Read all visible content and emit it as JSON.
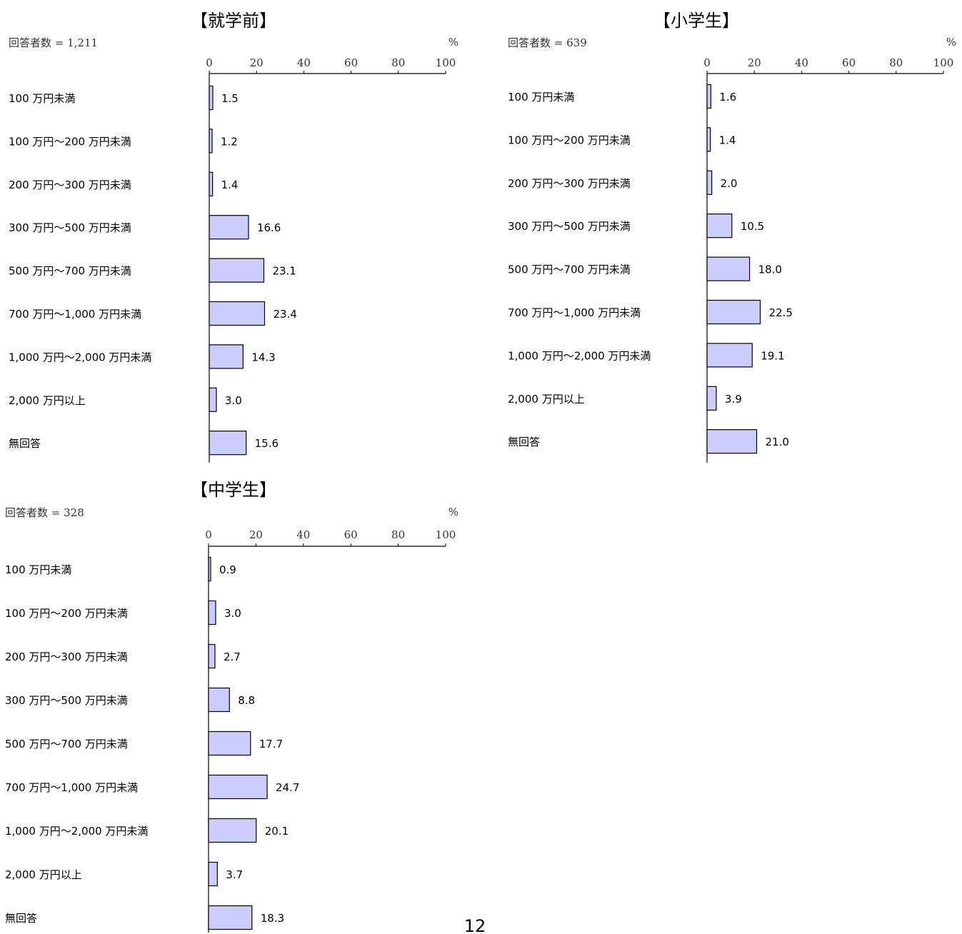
{
  "chart_data": [
    {
      "type": "bar",
      "orientation": "horizontal",
      "title": "【就学前】",
      "respondents": "回答者数 = 1,211",
      "unit": "%",
      "xlim": [
        0,
        100
      ],
      "ticks": [
        "0",
        "20",
        "40",
        "60",
        "80",
        "100"
      ],
      "categories": [
        "100 万円未満",
        "100 万円～200 万円未満",
        "200 万円～300 万円未満",
        "300 万円～500 万円未満",
        "500 万円～700 万円未満",
        "700 万円～1,000 万円未満",
        "1,000 万円～2,000 万円未満",
        "2,000 万円以上",
        "無回答"
      ],
      "values": [
        1.5,
        1.2,
        1.4,
        16.6,
        23.1,
        23.4,
        14.3,
        3.0,
        15.6
      ],
      "labels": [
        "1.5",
        "1.2",
        "1.4",
        "16.6",
        "23.1",
        "23.4",
        "14.3",
        "3.0",
        "15.6"
      ]
    },
    {
      "type": "bar",
      "orientation": "horizontal",
      "title": "【小学生】",
      "respondents": "回答者数 = 639",
      "unit": "%",
      "xlim": [
        0,
        100
      ],
      "ticks": [
        "0",
        "20",
        "40",
        "60",
        "80",
        "100"
      ],
      "categories": [
        "100 万円未満",
        "100 万円～200 万円未満",
        "200 万円～300 万円未満",
        "300 万円～500 万円未満",
        "500 万円～700 万円未満",
        "700 万円～1,000 万円未満",
        "1,000 万円～2,000 万円未満",
        "2,000 万円以上",
        "無回答"
      ],
      "values": [
        1.6,
        1.4,
        2.0,
        10.5,
        18.0,
        22.5,
        19.1,
        3.9,
        21.0
      ],
      "labels": [
        "1.6",
        "1.4",
        "2.0",
        "10.5",
        "18.0",
        "22.5",
        "19.1",
        "3.9",
        "21.0"
      ]
    },
    {
      "type": "bar",
      "orientation": "horizontal",
      "title": "【中学生】",
      "respondents": "回答者数 = 328",
      "unit": "%",
      "xlim": [
        0,
        100
      ],
      "ticks": [
        "0",
        "20",
        "40",
        "60",
        "80",
        "100"
      ],
      "categories": [
        "100 万円未満",
        "100 万円～200 万円未満",
        "200 万円～300 万円未満",
        "300 万円～500 万円未満",
        "500 万円～700 万円未満",
        "700 万円～1,000 万円未満",
        "1,000 万円～2,000 万円未満",
        "2,000 万円以上",
        "無回答"
      ],
      "values": [
        0.9,
        3.0,
        2.7,
        8.8,
        17.7,
        24.7,
        20.1,
        3.7,
        18.3
      ],
      "labels": [
        "0.9",
        "3.0",
        "2.7",
        "8.8",
        "17.7",
        "24.7",
        "20.1",
        "3.7",
        "18.3"
      ]
    }
  ],
  "colors": {
    "bar_fill": "#ccccff",
    "bar_stroke": "#000000",
    "axis": "#000000"
  },
  "page_number": "12"
}
